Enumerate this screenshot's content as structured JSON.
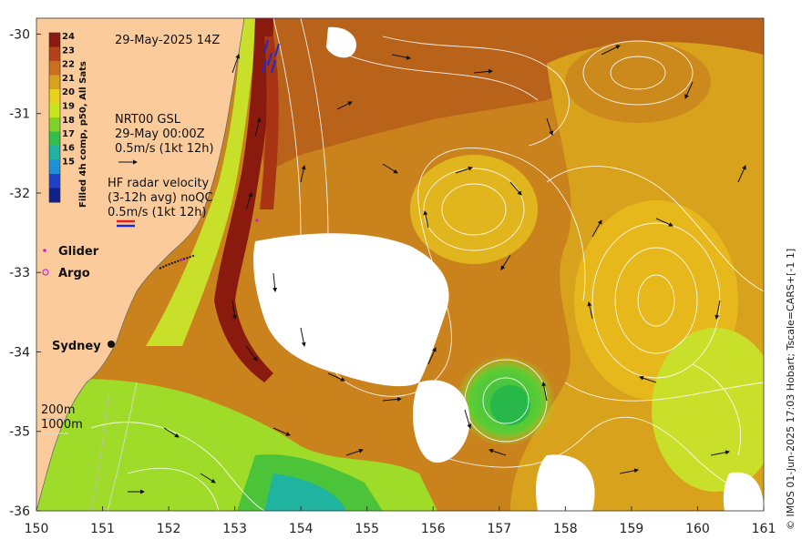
{
  "map": {
    "title_date": "29-May-2025 14Z",
    "colorbar_title": "Filled 4h comp, p50, All Sats",
    "colorbar_ticks": [
      "24",
      "23",
      "22",
      "21",
      "20",
      "19",
      "18",
      "17",
      "16",
      "15"
    ],
    "colorbar_colors": [
      "#8b1a0e",
      "#b3411a",
      "#c8701e",
      "#d9a21c",
      "#e9d31a",
      "#c8e61e",
      "#7fd22a",
      "#2fbf4a",
      "#1fb3a0",
      "#1e90d8",
      "#2040c8",
      "#12208a"
    ],
    "x_ticks": [
      "150",
      "151",
      "152",
      "153",
      "154",
      "155",
      "156",
      "157",
      "158",
      "159",
      "160",
      "161"
    ],
    "y_ticks": [
      "-30",
      "-31",
      "-32",
      "-33",
      "-34",
      "-35",
      "-36"
    ],
    "lon_range": [
      150,
      161
    ],
    "lat_range": [
      -36,
      -29.8
    ],
    "current_legend": {
      "line1": "NRT00 GSL",
      "line2": "29-May 00:00Z",
      "line3": "0.5m/s (1kt 12h)"
    },
    "radar_legend": {
      "line1": "HF radar velocity",
      "line2": "(3-12h avg) noQC",
      "line3": "0.5m/s (1kt 12h)"
    },
    "glider_label": "Glider",
    "argo_label": "Argo",
    "city_label": "Sydney",
    "isobath_200": "200m",
    "isobath_1000": "1000m",
    "credit": "© IMOS 01-Jun-2025 17:03 Hobart; Tscale=CARS+[-1 1]",
    "colors": {
      "land": "#fccb9c",
      "warm_core": "#c9781a",
      "shelf_edge": "#9b2a0f",
      "cool_water": "#9fdc2a",
      "cloud": "#ffffff"
    }
  }
}
